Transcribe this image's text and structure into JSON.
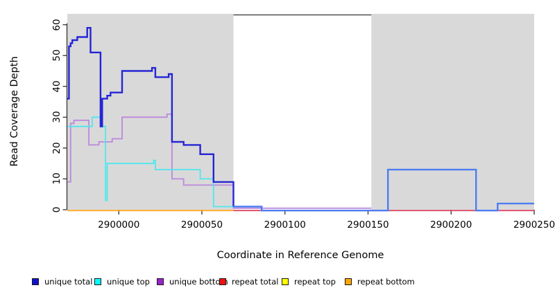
{
  "chart_data": {
    "type": "line",
    "subtype": "step-coverage-plot",
    "title": "",
    "xlabel": "Coordinate in Reference Genome",
    "ylabel": "Read Coverage Depth",
    "xlim": [
      2899969,
      2900250
    ],
    "ylim": [
      0,
      63.5
    ],
    "grid": false,
    "x_ticks": [
      2900000,
      2900050,
      2900100,
      2900150,
      2900200,
      2900250
    ],
    "y_ticks": [
      0,
      10,
      20,
      30,
      40,
      50,
      60
    ],
    "background_color_outside": "#FFFFFF",
    "shaded_regions": [
      {
        "from": 2899969,
        "to": 2900069,
        "color": "#D9D9D9"
      },
      {
        "from": 2900152,
        "to": 2900250,
        "color": "#D9D9D9"
      }
    ],
    "white_gap_region": {
      "from": 2900069,
      "to": 2900152,
      "top_border_color": "#4D4D4D"
    },
    "series": [
      {
        "name": "repeat top",
        "color": "#FFFF00",
        "steps": [],
        "end": null,
        "note": "legend entry only; no visible data in plot"
      },
      {
        "name": "repeat total",
        "color": "#DC4466",
        "steps": [
          [
            2900069,
            0
          ]
        ],
        "end": 2900250
      },
      {
        "name": "repeat bottom",
        "color": "#FFA520",
        "steps": [
          [
            2899969,
            0
          ]
        ],
        "end": 2900069
      },
      {
        "name": "unique bottom",
        "color": "#BB88DD",
        "steps": [
          [
            2899969,
            9
          ],
          [
            2899971,
            28
          ],
          [
            2899973,
            29
          ],
          [
            2899982,
            21
          ],
          [
            2899988,
            22
          ],
          [
            2899996,
            23
          ],
          [
            2900002,
            30
          ],
          [
            2900029,
            31
          ],
          [
            2900032,
            10
          ],
          [
            2900039,
            8
          ],
          [
            2900069,
            0.5
          ]
        ],
        "end": 2900152
      },
      {
        "name": "unique top",
        "color": "#50E6EE",
        "steps": [
          [
            2899969,
            27
          ],
          [
            2899984,
            30
          ],
          [
            2899989,
            27
          ],
          [
            2899992,
            3
          ],
          [
            2899993,
            15
          ],
          [
            2900021,
            16
          ],
          [
            2900022,
            13
          ],
          [
            2900049,
            10
          ],
          [
            2900057,
            1
          ]
        ],
        "end": 2900069
      },
      {
        "name": "unique total",
        "color": "#2525D5",
        "color_light": "#4D7DF2",
        "light_from": 2900069,
        "line_width": 2.4,
        "steps": [
          [
            2899969,
            36
          ],
          [
            2899970,
            53
          ],
          [
            2899971,
            54
          ],
          [
            2899972,
            55
          ],
          [
            2899975,
            56
          ],
          [
            2899981,
            59
          ],
          [
            2899983,
            51
          ],
          [
            2899989,
            27
          ],
          [
            2899990,
            36
          ],
          [
            2899993,
            37
          ],
          [
            2899995,
            38
          ],
          [
            2900002,
            45
          ],
          [
            2900020,
            46
          ],
          [
            2900022,
            43
          ],
          [
            2900030,
            44
          ],
          [
            2900032,
            22
          ],
          [
            2900039,
            21
          ],
          [
            2900049,
            18
          ],
          [
            2900057,
            9
          ],
          [
            2900069,
            1
          ],
          [
            2900086,
            0
          ],
          [
            2900162,
            13
          ],
          [
            2900215,
            0
          ],
          [
            2900228,
            2
          ]
        ],
        "end": 2900250
      }
    ],
    "legend": {
      "position": "bottom",
      "items": [
        {
          "label": "unique total",
          "color": "#1111CC"
        },
        {
          "label": "unique top",
          "color": "#00FFFF"
        },
        {
          "label": "unique bottom",
          "color": "#9922CC"
        },
        {
          "label": "repeat total",
          "color": "#EE1111"
        },
        {
          "label": "repeat top",
          "color": "#FFFF00"
        },
        {
          "label": "repeat bottom",
          "color": "#FFA500"
        }
      ]
    }
  }
}
